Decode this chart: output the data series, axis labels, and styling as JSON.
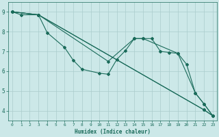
{
  "title": "",
  "xlabel": "Humidex (Indice chaleur)",
  "ylabel": "",
  "background_color": "#cce8e8",
  "grid_color": "#aacccc",
  "line_color": "#1a6b5a",
  "xlim": [
    -0.5,
    23.5
  ],
  "ylim": [
    3.5,
    9.5
  ],
  "yticks": [
    4,
    5,
    6,
    7,
    8,
    9
  ],
  "xticks": [
    0,
    1,
    2,
    3,
    4,
    5,
    6,
    7,
    8,
    9,
    10,
    11,
    12,
    13,
    14,
    15,
    16,
    17,
    18,
    19,
    20,
    21,
    22,
    23
  ],
  "lines": [
    {
      "x": [
        0,
        1,
        3,
        22,
        23
      ],
      "y": [
        9.0,
        8.85,
        8.85,
        4.05,
        3.75
      ]
    },
    {
      "x": [
        0,
        3,
        4,
        6,
        7,
        8,
        10,
        11,
        12,
        13,
        14,
        15,
        16,
        17,
        18,
        19,
        20,
        21,
        22,
        23
      ],
      "y": [
        9.0,
        8.85,
        7.95,
        7.2,
        6.55,
        6.1,
        5.9,
        5.85,
        6.6,
        7.05,
        7.65,
        7.65,
        7.65,
        7.0,
        6.95,
        6.9,
        6.35,
        4.9,
        4.35,
        3.75
      ]
    },
    {
      "x": [
        0,
        3,
        11,
        14,
        15,
        19,
        21,
        22,
        23
      ],
      "y": [
        9.0,
        8.85,
        6.5,
        7.65,
        7.65,
        6.9,
        4.9,
        4.35,
        3.75
      ]
    },
    {
      "x": [
        0,
        3,
        22,
        23
      ],
      "y": [
        9.0,
        8.85,
        4.05,
        3.75
      ]
    }
  ],
  "figsize": [
    3.2,
    2.0
  ],
  "dpi": 100
}
